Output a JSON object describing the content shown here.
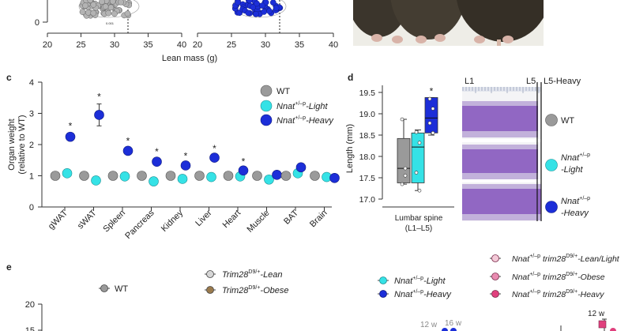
{
  "colors": {
    "wt": "#9a9a9a",
    "light": "#35e2e6",
    "heavy": "#1c2ed8",
    "heavy_dark": "#16249c",
    "lean_t28": "#c9c9c9",
    "obese_t28": "#9a7a4c",
    "nnat_lean": "#f3c9d7",
    "nnat_obese": "#e88bb0",
    "nnat_heavy": "#e0407d"
  },
  "top": {
    "xaxis_label": "Lean mass (g)",
    "left_ticks": [
      "20",
      "25",
      "30",
      "35",
      "40"
    ],
    "right_ticks": [
      "20",
      "25",
      "30",
      "35",
      "40"
    ],
    "y_zero": "0",
    "small_text": "0.001"
  },
  "panel_c": {
    "letter": "c",
    "ylabel_line1": "Organ weight",
    "ylabel_line2": "(relative to WT)",
    "legend": [
      {
        "label": "WT",
        "sup": "",
        "suffix": ""
      },
      {
        "label": "Nnat",
        "sup": "+/–p",
        "suffix": "-Light"
      },
      {
        "label": "Nnat",
        "sup": "+/–p",
        "suffix": "-Heavy"
      }
    ],
    "sig": "*"
  },
  "chart_data": [
    {
      "type": "scatter",
      "title": "Organ weight",
      "xlabel": "",
      "ylabel": "Organ weight (relative to WT)",
      "ylim": [
        0,
        4
      ],
      "yticks": [
        0,
        1,
        2,
        3,
        4
      ],
      "categories": [
        "gWAT",
        "sWAT",
        "Spleen",
        "Pancreas",
        "Kidney",
        "Liver",
        "Heart",
        "Muscle",
        "BAT",
        "Brain"
      ],
      "series": [
        {
          "name": "WT",
          "values": [
            1.0,
            1.0,
            1.0,
            1.0,
            1.0,
            1.0,
            1.0,
            1.0,
            1.0,
            1.0
          ],
          "err": [
            0.05,
            0.08,
            0.04,
            0.06,
            0.04,
            0.04,
            0.04,
            0.04,
            0.06,
            0.03
          ]
        },
        {
          "name": "Nnat+/–p-Light",
          "values": [
            1.08,
            0.85,
            0.98,
            0.82,
            0.9,
            0.96,
            0.98,
            0.88,
            1.08,
            0.96
          ],
          "err": [
            0.1,
            0.1,
            0.06,
            0.06,
            0.05,
            0.05,
            0.05,
            0.05,
            0.1,
            0.04
          ]
        },
        {
          "name": "Nnat+/–p-Heavy",
          "values": [
            2.25,
            2.95,
            1.8,
            1.45,
            1.33,
            1.58,
            1.17,
            1.03,
            1.27,
            0.93
          ],
          "err": [
            0.12,
            0.35,
            0.08,
            0.1,
            0.08,
            0.06,
            0.06,
            0.05,
            0.1,
            0.04
          ]
        }
      ],
      "significant": [
        true,
        true,
        true,
        true,
        true,
        true,
        true,
        false,
        false,
        false
      ]
    },
    {
      "type": "box",
      "title": "Length (mm)",
      "ylabel": "Length (mm)",
      "xlabel_line1": "Lumbar spine",
      "xlabel_line2": "(L1–L5)",
      "ylim": [
        17.0,
        19.5
      ],
      "yticks": [
        17.0,
        17.5,
        18.0,
        18.5,
        19.0,
        19.5
      ],
      "boxes": [
        {
          "name": "WT",
          "min": 17.35,
          "q1": 17.38,
          "median": 17.72,
          "q3": 18.42,
          "max": 18.87,
          "points": [
            18.87,
            17.72,
            17.35,
            17.55
          ]
        },
        {
          "name": "Nnat+/–p-Light",
          "min": 17.2,
          "q1": 17.38,
          "median": 18.22,
          "q3": 18.55,
          "max": 18.62,
          "points": [
            18.57,
            18.32,
            17.62,
            17.2
          ]
        },
        {
          "name": "Nnat+/–p-Heavy",
          "min": 18.5,
          "q1": 18.55,
          "median": 18.9,
          "q3": 19.38,
          "max": 19.38,
          "points": [
            19.35,
            19.12,
            18.78,
            18.55
          ]
        }
      ],
      "significant": [
        false,
        false,
        true
      ]
    }
  ],
  "panel_d": {
    "letter": "d",
    "sig": "*",
    "xray_labels": {
      "l1": "L1",
      "l5": "L5",
      "l5heavy": "L5-Heavy"
    },
    "xray_legend": [
      {
        "line1": "WT",
        "sup": "",
        "line2": ""
      },
      {
        "line1": "Nnat",
        "sup": "+/–p",
        "line2": "-Light"
      },
      {
        "line1": "Nnat",
        "sup": "+/–p",
        "line2": "-Heavy"
      }
    ]
  },
  "panel_e": {
    "letter": "e",
    "legend": {
      "wt": "WT",
      "t28_lean": {
        "base": "Trim28",
        "sup": "D9/+",
        "suffix": "-Lean"
      },
      "t28_obese": {
        "base": "Trim28",
        "sup": "D9/+",
        "suffix": "-Obese"
      },
      "nnat_light": {
        "base": "Nnat",
        "sup": "+/–p",
        "suffix": "-Light"
      },
      "nnat_heavy": {
        "base": "Nnat",
        "sup": "+/–p",
        "suffix": "-Heavy"
      },
      "dbl_lean": {
        "base": "Nnat",
        "sup": "+/–p",
        "mid": "trim28",
        "sup2": "D9/+",
        "suffix": "-Lean/Light"
      },
      "dbl_obese": {
        "base": "Nnat",
        "sup": "+/–p",
        "mid": "trim28",
        "sup2": "D9/+",
        "suffix": "-Obese"
      },
      "dbl_heavy": {
        "base": "Nnat",
        "sup": "+/–p",
        "mid": "trim28",
        "sup2": "D9/+",
        "suffix": "-Heavy"
      }
    },
    "ytick_20": "20",
    "ytick_15": "15",
    "age_12w": "12 w",
    "age_16w": "16 w",
    "age_12w_b": "12 w"
  }
}
